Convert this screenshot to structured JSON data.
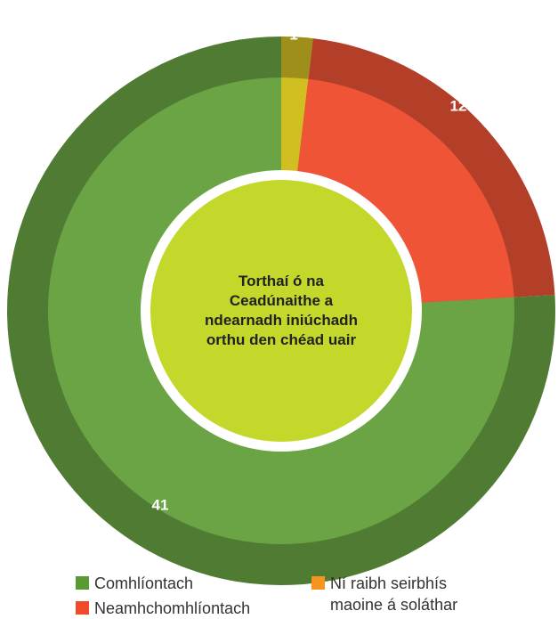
{
  "chart_data": {
    "type": "donut",
    "title": "Torthaí ó na Ceadúnaithe a ndearnadh iniúchadh orthu den chéad uair",
    "categories": [
      "Ní raibh seirbhís maoine á soláthar",
      "Neamhchomhlíontach",
      "Comhlíontach"
    ],
    "values": [
      1,
      12,
      41
    ],
    "colors": [
      "#d1bf22",
      "#f05436",
      "#6aa444"
    ],
    "legend_colors": [
      "#f7941d",
      "#f04a2a",
      "#5a9a35"
    ]
  }
}
